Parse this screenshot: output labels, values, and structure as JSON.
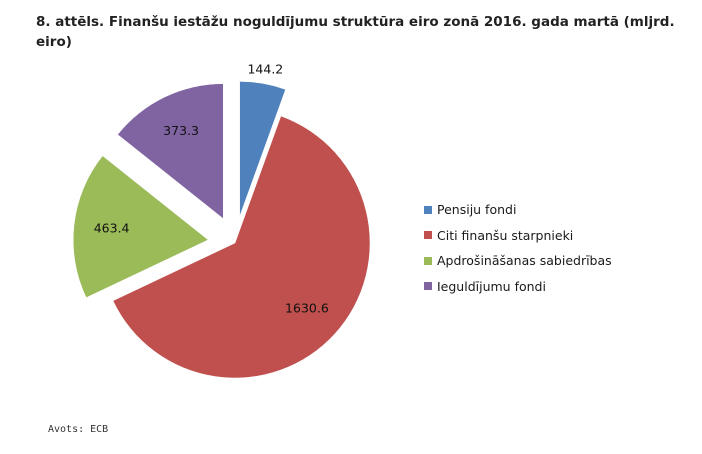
{
  "title": "8. attēls. Finanšu iestāžu noguldījumu struktūra eiro zonā 2016. gada martā (mljrd. eiro)",
  "source": "Avots: ECB",
  "chart_data": {
    "type": "pie",
    "title": "8. attēls. Finanšu iestāžu noguldījumu struktūra eiro zonā 2016. gada martā (mljrd. eiro)",
    "categories": [
      "Pensiju fondi",
      "Citi finanšu starpnieki",
      "Apdrošināšanas sabiedrības",
      "Ieguldījumu fondi"
    ],
    "values": [
      144.2,
      1630.6,
      463.4,
      373.3
    ],
    "value_labels": [
      "144.2",
      "1630.6",
      "463.4",
      "373.3"
    ],
    "colors": [
      "#4F81BD",
      "#C0504D",
      "#9BBB59",
      "#8064A2"
    ],
    "exploded": true,
    "legend": "right",
    "grid": false
  }
}
